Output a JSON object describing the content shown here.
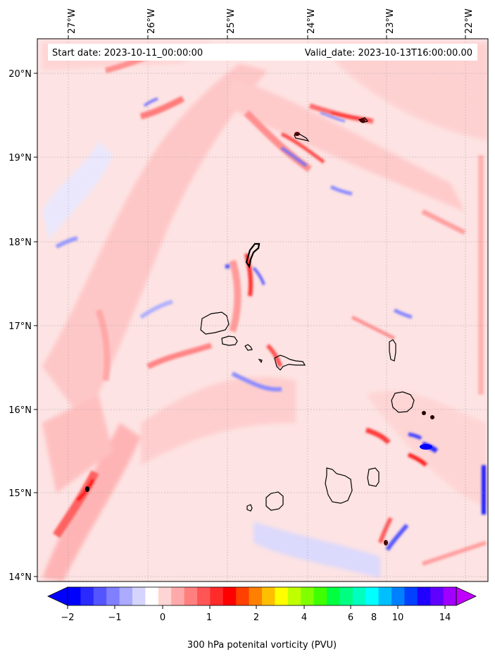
{
  "map": {
    "start_date": "Start date: 2023-10-11_00:00:00",
    "valid_date": "Valid_date: 2023-10-13T16:00:00.00",
    "lon_labels": [
      "27°W",
      "26°W",
      "25°W",
      "24°W",
      "23°W",
      "22°W"
    ],
    "lat_labels": [
      "20°N",
      "19°N",
      "18°N",
      "17°N",
      "16°N",
      "15°N",
      "14°N"
    ],
    "lon_range": [
      -27.4,
      -21.7
    ],
    "lat_range": [
      13.95,
      20.45
    ],
    "grid": true
  },
  "colorbar": {
    "label": "300 hPa potenital vorticity (PVU)",
    "tick_labels": [
      "−2",
      "−1",
      "0",
      "1",
      "2",
      "4",
      "6",
      "8",
      "10",
      "14"
    ],
    "colors": [
      "#0000ff",
      "#2a2aff",
      "#5555ff",
      "#7f7fff",
      "#aaaaff",
      "#d4d4ff",
      "#ffffff",
      "#ffd4d4",
      "#ffaaaa",
      "#ff7f7f",
      "#ff5555",
      "#ff2a2a",
      "#ff0000",
      "#ff4000",
      "#ff8000",
      "#ffbf00",
      "#ffff00",
      "#bfff00",
      "#80ff00",
      "#40ff00",
      "#00ff40",
      "#00ff80",
      "#00ffbf",
      "#00ffff",
      "#00bfff",
      "#0080ff",
      "#0040ff",
      "#2000ff",
      "#6000ff",
      "#a000ff"
    ],
    "extend_low_color": "#0000ff",
    "extend_high_color": "#c000ff"
  },
  "fields": {
    "background_color": "#fde0e0",
    "positive_color": "#ff0000",
    "negative_color": "#0000ff",
    "coast_color": "#000000"
  }
}
